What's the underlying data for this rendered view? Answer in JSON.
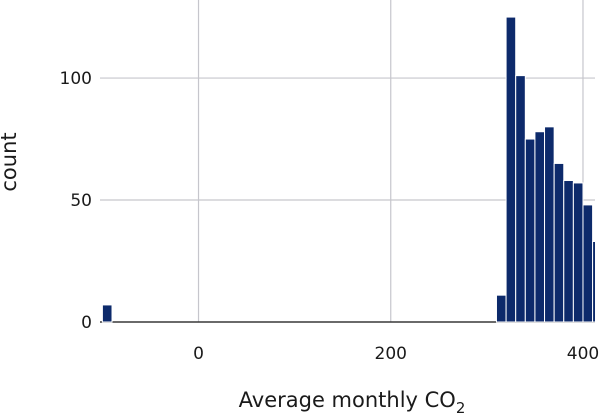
{
  "chart_data": {
    "type": "bar",
    "title": "",
    "xlabel": "Average monthly CO",
    "xlabel_subscript": "2",
    "ylabel": "count",
    "xlim": [
      -102.5,
      412.5
    ],
    "ylim": [
      0,
      132
    ],
    "x_ticks": [
      0,
      200,
      400
    ],
    "y_ticks": [
      0,
      50,
      100
    ],
    "grid": true,
    "bar_color": "#0d2a6b",
    "bin_width": 10,
    "bins": [
      {
        "x0": -100,
        "x1": -90,
        "count": 7
      },
      {
        "x0": 310,
        "x1": 320,
        "count": 11
      },
      {
        "x0": 320,
        "x1": 330,
        "count": 125
      },
      {
        "x0": 330,
        "x1": 340,
        "count": 101
      },
      {
        "x0": 340,
        "x1": 350,
        "count": 75
      },
      {
        "x0": 350,
        "x1": 360,
        "count": 78
      },
      {
        "x0": 360,
        "x1": 370,
        "count": 80
      },
      {
        "x0": 370,
        "x1": 380,
        "count": 65
      },
      {
        "x0": 380,
        "x1": 390,
        "count": 58
      },
      {
        "x0": 390,
        "x1": 400,
        "count": 57
      },
      {
        "x0": 400,
        "x1": 410,
        "count": 48
      },
      {
        "x0": 410,
        "x1": 420,
        "count": 33
      }
    ]
  }
}
